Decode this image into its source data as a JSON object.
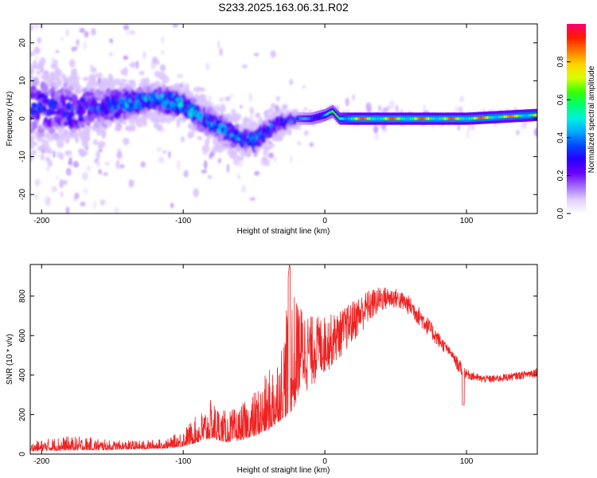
{
  "figure": {
    "title": "S233.2025.163.06.31.R02"
  },
  "colors": {
    "snr_line": "#ee2222",
    "colormap": [
      "#ffffff",
      "#e2d0ff",
      "#a36bff",
      "#6a00ff",
      "#2a00ff",
      "#0046ff",
      "#00a8ff",
      "#00f0e0",
      "#00ff70",
      "#3cff00",
      "#d8ff00",
      "#ffd400",
      "#ff7a00",
      "#ff1a00",
      "#ff0070"
    ]
  },
  "chart_data": [
    {
      "type": "heatmap",
      "title": "S233.2025.163.06.31.R02",
      "xlabel": "Height of straight line (km)",
      "ylabel": "Frequency (Hz)",
      "xlim": [
        -208,
        150
      ],
      "ylim": [
        -25,
        25
      ],
      "xticks": [
        -200,
        -100,
        0,
        100
      ],
      "yticks": [
        -20,
        -10,
        0,
        10,
        20
      ],
      "grid": false,
      "colorbar": {
        "label": "Normalized spectral amplitude",
        "range": [
          0.0,
          1.0
        ],
        "ticks": [
          0.0,
          0.2,
          0.4,
          0.6,
          0.8
        ]
      },
      "ridge": {
        "description_x": [
          -200,
          -180,
          -160,
          -140,
          -120,
          -100,
          -90,
          -80,
          -70,
          -60,
          -50,
          -40,
          -30,
          -20,
          -10,
          0,
          5,
          10,
          20,
          50,
          100,
          150
        ],
        "center_hz": [
          3,
          2,
          3,
          4,
          5,
          4,
          1,
          -1,
          -3,
          -5,
          -6,
          -3,
          -1,
          0,
          0,
          1,
          2,
          0,
          0,
          0,
          0,
          1
        ],
        "spread_hz": [
          12,
          10,
          8,
          6,
          5,
          5,
          5,
          5,
          5,
          4,
          4,
          4,
          3,
          2,
          1.5,
          1.5,
          1.5,
          1.2,
          1.2,
          1.2,
          1.2,
          1.2
        ],
        "peak_amp": [
          0.3,
          0.3,
          0.35,
          0.4,
          0.5,
          0.5,
          0.45,
          0.45,
          0.45,
          0.45,
          0.45,
          0.4,
          0.35,
          0.4,
          0.5,
          0.6,
          0.6,
          0.75,
          0.9,
          0.9,
          0.9,
          0.85
        ]
      }
    },
    {
      "type": "line",
      "xlabel": "Height of straight line (km)",
      "ylabel": "SNR (10 * v/v)",
      "xlim": [
        -208,
        150
      ],
      "ylim": [
        0,
        960
      ],
      "xticks": [
        -200,
        -100,
        0,
        100
      ],
      "yticks": [
        0,
        200,
        400,
        600,
        800
      ],
      "grid": false,
      "series": [
        {
          "x": [
            -208,
            -190,
            -170,
            -150,
            -130,
            -110,
            -100,
            -90,
            -80,
            -70,
            -60,
            -50,
            -40,
            -35,
            -30,
            -25,
            -20,
            -10,
            0,
            10,
            20,
            30,
            40,
            50,
            60,
            70,
            80,
            90,
            95,
            100,
            110,
            120,
            130,
            140,
            150
          ],
          "y_low": [
            15,
            18,
            20,
            22,
            25,
            30,
            40,
            60,
            80,
            60,
            70,
            90,
            120,
            150,
            180,
            200,
            260,
            330,
            400,
            480,
            560,
            650,
            720,
            740,
            700,
            620,
            540,
            480,
            400,
            380,
            360,
            360,
            370,
            380,
            390
          ],
          "y_high": [
            60,
            90,
            90,
            70,
            70,
            80,
            130,
            200,
            280,
            220,
            240,
            320,
            420,
            520,
            600,
            960,
            780,
            700,
            700,
            720,
            780,
            830,
            850,
            840,
            800,
            720,
            620,
            520,
            480,
            430,
            400,
            400,
            410,
            420,
            440
          ]
        }
      ]
    }
  ]
}
